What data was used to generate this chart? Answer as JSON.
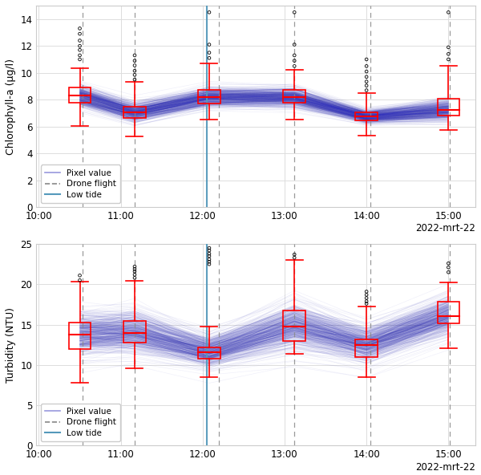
{
  "subplot1": {
    "ylabel": "Chlorophyll-a (µg/l)",
    "ylim": [
      0,
      15
    ],
    "yticks": [
      0,
      2,
      4,
      6,
      8,
      10,
      12,
      14
    ],
    "boxes": [
      {
        "x": 10.5,
        "q1": 7.8,
        "median": 8.3,
        "q3": 8.9,
        "whisker_low": 6.05,
        "whisker_high": 10.35
      },
      {
        "x": 11.17,
        "q1": 6.65,
        "median": 7.05,
        "q3": 7.5,
        "whisker_low": 5.3,
        "whisker_high": 9.3
      },
      {
        "x": 12.08,
        "q1": 7.7,
        "median": 8.2,
        "q3": 8.75,
        "whisker_low": 6.5,
        "whisker_high": 10.7
      },
      {
        "x": 13.12,
        "q1": 7.75,
        "median": 8.2,
        "q3": 8.75,
        "whisker_low": 6.5,
        "whisker_high": 10.2
      },
      {
        "x": 14.0,
        "q1": 6.45,
        "median": 6.75,
        "q3": 7.05,
        "whisker_low": 5.35,
        "whisker_high": 8.5
      },
      {
        "x": 15.0,
        "q1": 6.85,
        "median": 7.25,
        "q3": 8.05,
        "whisker_low": 5.75,
        "whisker_high": 10.5
      }
    ],
    "outlier_x": [
      10.5,
      10.5,
      10.5,
      10.5,
      10.5,
      10.5,
      10.5,
      11.17,
      11.17,
      11.17,
      11.17,
      11.17,
      11.17,
      12.08,
      12.08,
      12.08,
      12.08,
      13.12,
      13.12,
      13.12,
      13.12,
      13.12,
      14.0,
      14.0,
      14.0,
      14.0,
      14.0,
      14.0,
      14.0,
      15.0,
      15.0,
      15.0,
      15.0
    ],
    "outlier_y": [
      11.0,
      11.3,
      11.7,
      12.0,
      12.4,
      12.9,
      13.3,
      9.5,
      9.85,
      10.15,
      10.55,
      10.9,
      11.3,
      11.1,
      11.5,
      12.1,
      14.5,
      10.5,
      10.9,
      11.3,
      12.1,
      14.5,
      8.7,
      9.05,
      9.35,
      9.7,
      10.1,
      10.5,
      11.0,
      11.0,
      11.4,
      11.9,
      14.5
    ],
    "mean_y": [
      8.3,
      7.05,
      8.2,
      8.2,
      6.75,
      7.25
    ],
    "spread_y": [
      0.55,
      0.5,
      0.5,
      0.5,
      0.35,
      0.55
    ]
  },
  "subplot2": {
    "ylabel": "Turbidity (NTU)",
    "ylim": [
      0,
      25
    ],
    "yticks": [
      0,
      5,
      10,
      15,
      20,
      25
    ],
    "boxes": [
      {
        "x": 10.5,
        "q1": 12.0,
        "median": 13.8,
        "q3": 15.3,
        "whisker_low": 7.8,
        "whisker_high": 20.3
      },
      {
        "x": 11.17,
        "q1": 12.8,
        "median": 14.0,
        "q3": 15.5,
        "whisker_low": 9.6,
        "whisker_high": 20.4
      },
      {
        "x": 12.08,
        "q1": 10.8,
        "median": 11.6,
        "q3": 12.2,
        "whisker_low": 8.5,
        "whisker_high": 14.8
      },
      {
        "x": 13.12,
        "q1": 13.0,
        "median": 14.8,
        "q3": 16.8,
        "whisker_low": 11.4,
        "whisker_high": 23.0
      },
      {
        "x": 14.0,
        "q1": 11.0,
        "median": 12.5,
        "q3": 13.2,
        "whisker_low": 8.5,
        "whisker_high": 17.2
      },
      {
        "x": 15.0,
        "q1": 15.2,
        "median": 16.1,
        "q3": 17.8,
        "whisker_low": 12.1,
        "whisker_high": 20.2
      }
    ],
    "outlier_x": [
      10.5,
      10.5,
      11.17,
      11.17,
      11.17,
      11.17,
      11.17,
      12.08,
      12.08,
      12.08,
      12.08,
      12.08,
      12.08,
      12.08,
      13.12,
      13.12,
      14.0,
      14.0,
      14.0,
      14.0,
      14.0,
      15.0,
      15.0,
      15.0
    ],
    "outlier_y": [
      20.5,
      21.1,
      20.8,
      21.2,
      21.6,
      21.9,
      22.2,
      22.5,
      22.8,
      23.1,
      23.5,
      23.8,
      24.2,
      24.5,
      23.3,
      23.7,
      17.6,
      17.9,
      18.3,
      18.7,
      19.1,
      21.5,
      22.1,
      22.6
    ],
    "mean_y": [
      13.8,
      14.0,
      11.6,
      14.8,
      12.5,
      16.1
    ],
    "spread_y": [
      1.8,
      1.8,
      1.3,
      1.9,
      1.5,
      1.6
    ]
  },
  "drone_flights_x": [
    10.53,
    11.17,
    12.2,
    13.12,
    14.05,
    15.02
  ],
  "low_tide_x": 12.05,
  "xlim": [
    9.97,
    15.33
  ],
  "xticks": [
    10.0,
    11.0,
    12.0,
    13.0,
    14.0,
    15.0
  ],
  "xticklabels": [
    "10:00",
    "11:00",
    "12:00",
    "13:00",
    "14:00",
    "15:00"
  ],
  "xlabel_date": "2022-mrt-22",
  "line_color": "#3333bb",
  "line_alpha": 0.07,
  "line_lw": 0.5,
  "box_color": "red",
  "box_width": 0.27,
  "drone_color": "#888888",
  "low_tide_color": "#5599bb",
  "n_lines": 500,
  "background_color": "#ffffff",
  "grid_color": "#dddddd"
}
